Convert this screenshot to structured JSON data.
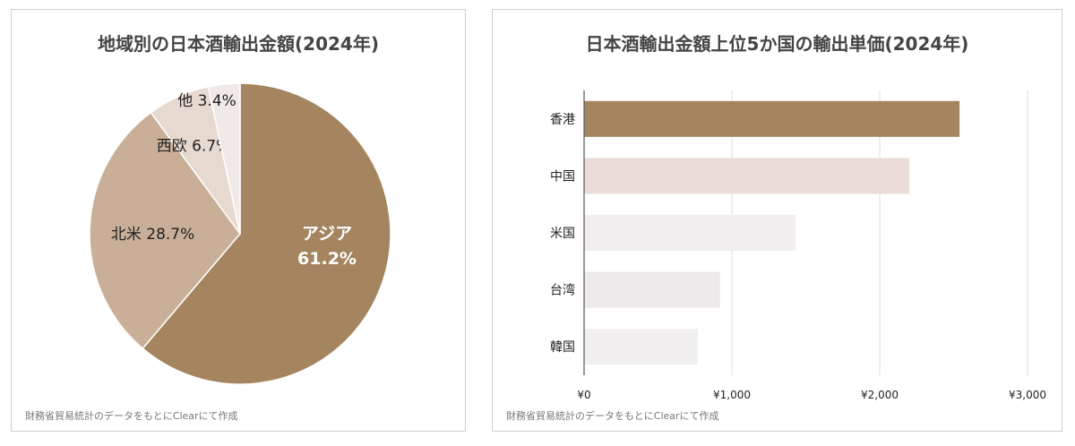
{
  "charts": {
    "left": {
      "title": "地域別の日本酒輸出金額(2024年)",
      "source": "財務省貿易統計のデータをもとにClearにて作成"
    },
    "right": {
      "title": "日本酒輸出金額上位5か国の輸出単価(2024年)",
      "source": "財務省貿易統計のデータをもとにClearにて作成"
    }
  },
  "chart_data": [
    {
      "type": "pie",
      "title": "地域別の日本酒輸出金額(2024年)",
      "slices": [
        {
          "name": "アジア",
          "value": 61.2,
          "label_line1": "アジア",
          "label_line2": "61.2%",
          "color": "#a58460"
        },
        {
          "name": "北米",
          "value": 28.7,
          "label_line1": "北米 28.7%",
          "label_line2": "",
          "color": "#c9af98"
        },
        {
          "name": "西欧",
          "value": 6.7,
          "label_line1": "西欧 6.7%",
          "label_line2": "",
          "color": "#e5d9d0"
        },
        {
          "name": "他",
          "value": 3.4,
          "label_line1": "他 3.4%",
          "label_line2": "",
          "color": "#efe9e7"
        }
      ],
      "start_angle_deg": 0,
      "direction": "clockwise"
    },
    {
      "type": "bar",
      "orientation": "horizontal",
      "title": "日本酒輸出金額上位5か国の輸出単価(2024年)",
      "categories": [
        "香港",
        "中国",
        "米国",
        "台湾",
        "韓国"
      ],
      "values": [
        2540,
        2200,
        1430,
        920,
        770
      ],
      "colors": [
        "#a58460",
        "#eadcd6",
        "#f2edee",
        "#eeeaec",
        "#f2eff0"
      ],
      "xlim": [
        0,
        3000
      ],
      "xticks": [
        0,
        1000,
        2000,
        3000
      ],
      "xtick_labels": [
        "¥0",
        "¥1,000",
        "¥2,000",
        "¥3,000"
      ],
      "grid": true
    }
  ]
}
